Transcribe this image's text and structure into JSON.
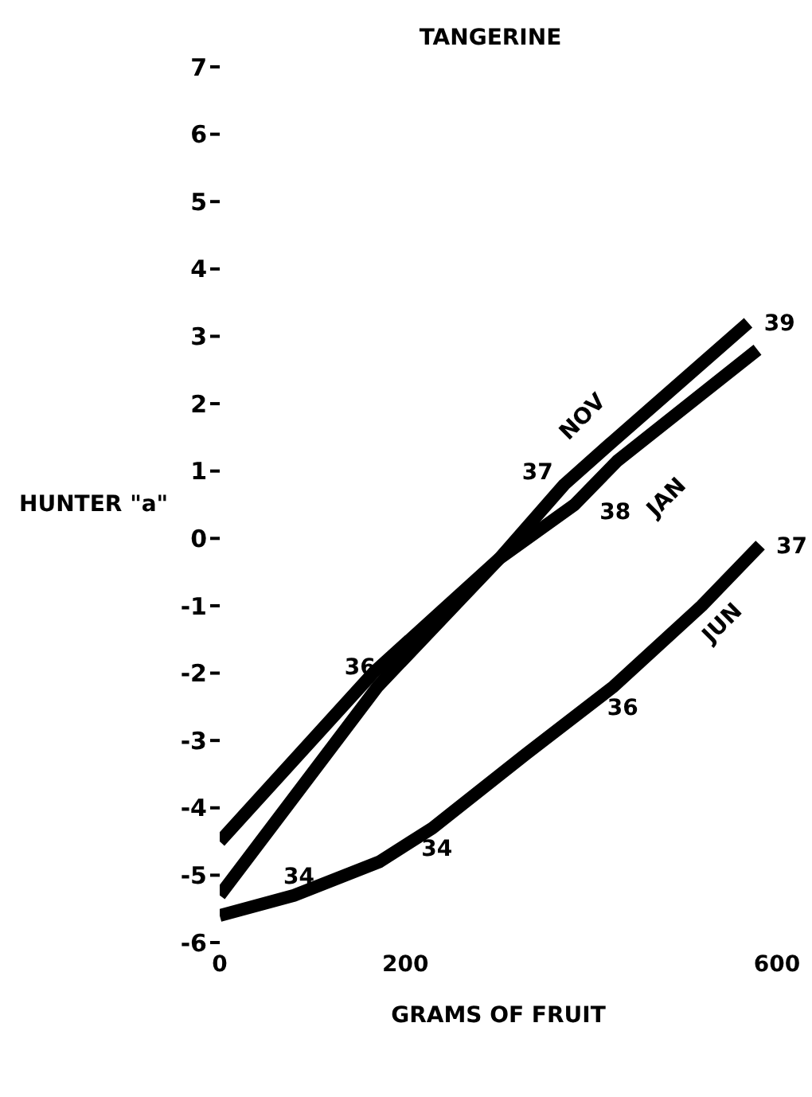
{
  "chart_data": {
    "type": "line",
    "title": "TANGERINE",
    "xlabel": "GRAMS OF FRUIT",
    "ylabel": "HUNTER \"a\"",
    "series": [
      {
        "name": "NOV",
        "color": "#000000",
        "x": [
          0,
          170,
          301,
          371,
          420,
          569
        ],
        "values": [
          -5.3,
          -2.2,
          -0.3,
          0.8,
          1.4,
          3.2
        ]
      },
      {
        "name": "JAN",
        "color": "#000000",
        "x": [
          0,
          165,
          301,
          382,
          428,
          579
        ],
        "values": [
          -4.5,
          -2.0,
          -0.3,
          0.5,
          1.15,
          2.8
        ]
      },
      {
        "name": "JUN",
        "color": "#000000",
        "x": [
          0,
          80,
          172,
          229,
          330,
          424,
          519,
          582
        ],
        "values": [
          -5.6,
          -5.3,
          -4.8,
          -4.3,
          -3.2,
          -2.2,
          -1.0,
          -0.1
        ]
      }
    ],
    "annotations": [
      "34",
      {
        "text": "34",
        "x": 200,
        "y": -4.6
      },
      {
        "text": "36",
        "x": 185,
        "y": -1.9
      },
      {
        "text": "36",
        "x": 400,
        "y": -2.5
      },
      {
        "text": "37",
        "x": 376,
        "y": 1.0
      },
      {
        "text": "38",
        "x": 392,
        "y": 0.4
      },
      {
        "text": "39",
        "x": 569,
        "y": 3.2
      },
      {
        "text": "37",
        "x": 582,
        "y": -0.1
      }
    ],
    "xlim": [
      0,
      600
    ],
    "xticks": [
      0,
      200,
      600
    ],
    "ylim": [
      -6,
      7
    ],
    "yticks": [
      -6,
      -5,
      -4,
      -3,
      -2,
      -1,
      0,
      1,
      2,
      3,
      4,
      5,
      6,
      7
    ],
    "grid": false,
    "legend": false,
    "marker": "none",
    "line_style": "solid"
  }
}
